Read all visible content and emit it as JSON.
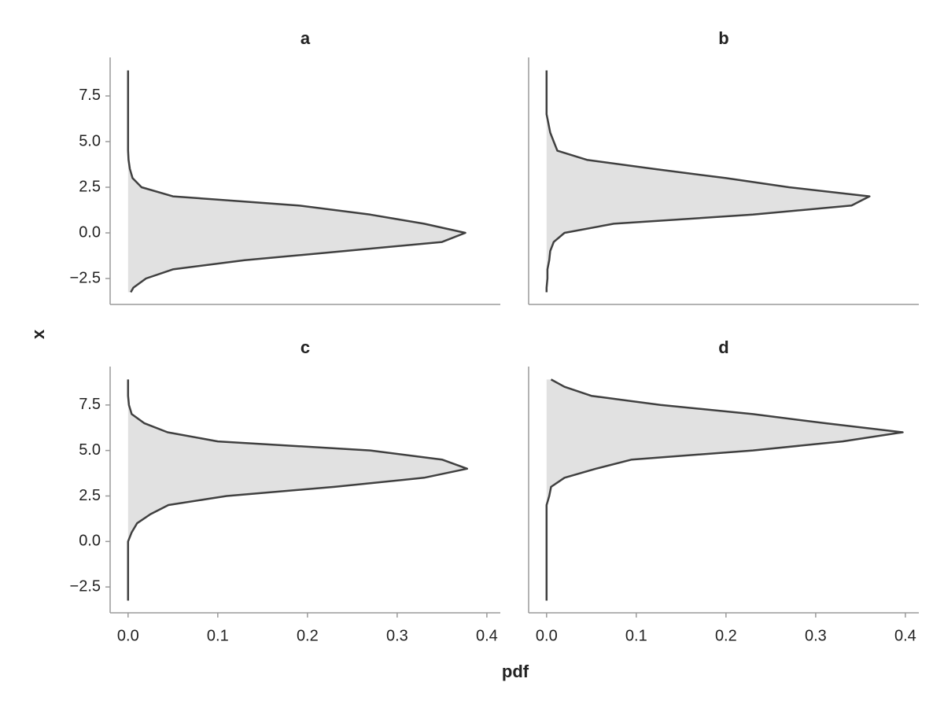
{
  "chart_data": {
    "type": "density",
    "x_label": "pdf",
    "y_label": "x",
    "xlim": [
      -0.02,
      0.415
    ],
    "xticks": [
      {
        "value": 0,
        "label": "0.0"
      },
      0.1,
      0.2,
      0.3,
      0.4
    ],
    "ylim": [
      -3.92,
      9.61
    ],
    "yticks": [
      {
        "value": -2.5,
        "label": "−2.5"
      },
      {
        "value": 0,
        "label": "0.0"
      },
      2.5,
      {
        "value": 5,
        "label": "5.0"
      },
      7.5
    ],
    "fill_color": "#e1e1e1",
    "line_color": "#404040",
    "x": [
      -3.25,
      -3,
      -2.5,
      -2,
      -1.5,
      -1,
      -0.5,
      0,
      0.5,
      1,
      1.5,
      2,
      2.5,
      3,
      3.5,
      4,
      4.5,
      5,
      5.5,
      6,
      6.5,
      7,
      7.5,
      8,
      8.5,
      8.9
    ],
    "panels": [
      {
        "title": "a",
        "values": [
          0.003,
          0.006,
          0.02,
          0.05,
          0.13,
          0.24,
          0.35,
          0.376,
          0.33,
          0.27,
          0.19,
          0.05,
          0.015,
          0.005,
          0.002,
          0.0005,
          0,
          0,
          0,
          0,
          0,
          0,
          0,
          0,
          0,
          0
        ]
      },
      {
        "title": "b",
        "values": [
          0,
          0,
          0.001,
          0.001,
          0.003,
          0.004,
          0.008,
          0.02,
          0.075,
          0.23,
          0.34,
          0.36,
          0.27,
          0.2,
          0.12,
          0.045,
          0.012,
          0.008,
          0.004,
          0.002,
          0,
          0,
          0,
          0,
          0,
          0
        ]
      },
      {
        "title": "c",
        "values": [
          0,
          0,
          0,
          0,
          0,
          0,
          0,
          0,
          0.004,
          0.01,
          0.025,
          0.045,
          0.11,
          0.23,
          0.33,
          0.378,
          0.35,
          0.27,
          0.1,
          0.044,
          0.018,
          0.004,
          0.001,
          0,
          0,
          0
        ]
      },
      {
        "title": "d",
        "values": [
          0,
          0,
          0,
          0,
          0,
          0,
          0,
          0,
          0,
          0,
          0,
          0,
          0.003,
          0.005,
          0.02,
          0.055,
          0.095,
          0.23,
          0.33,
          0.397,
          0.31,
          0.23,
          0.127,
          0.05,
          0.02,
          0.005
        ]
      }
    ]
  }
}
